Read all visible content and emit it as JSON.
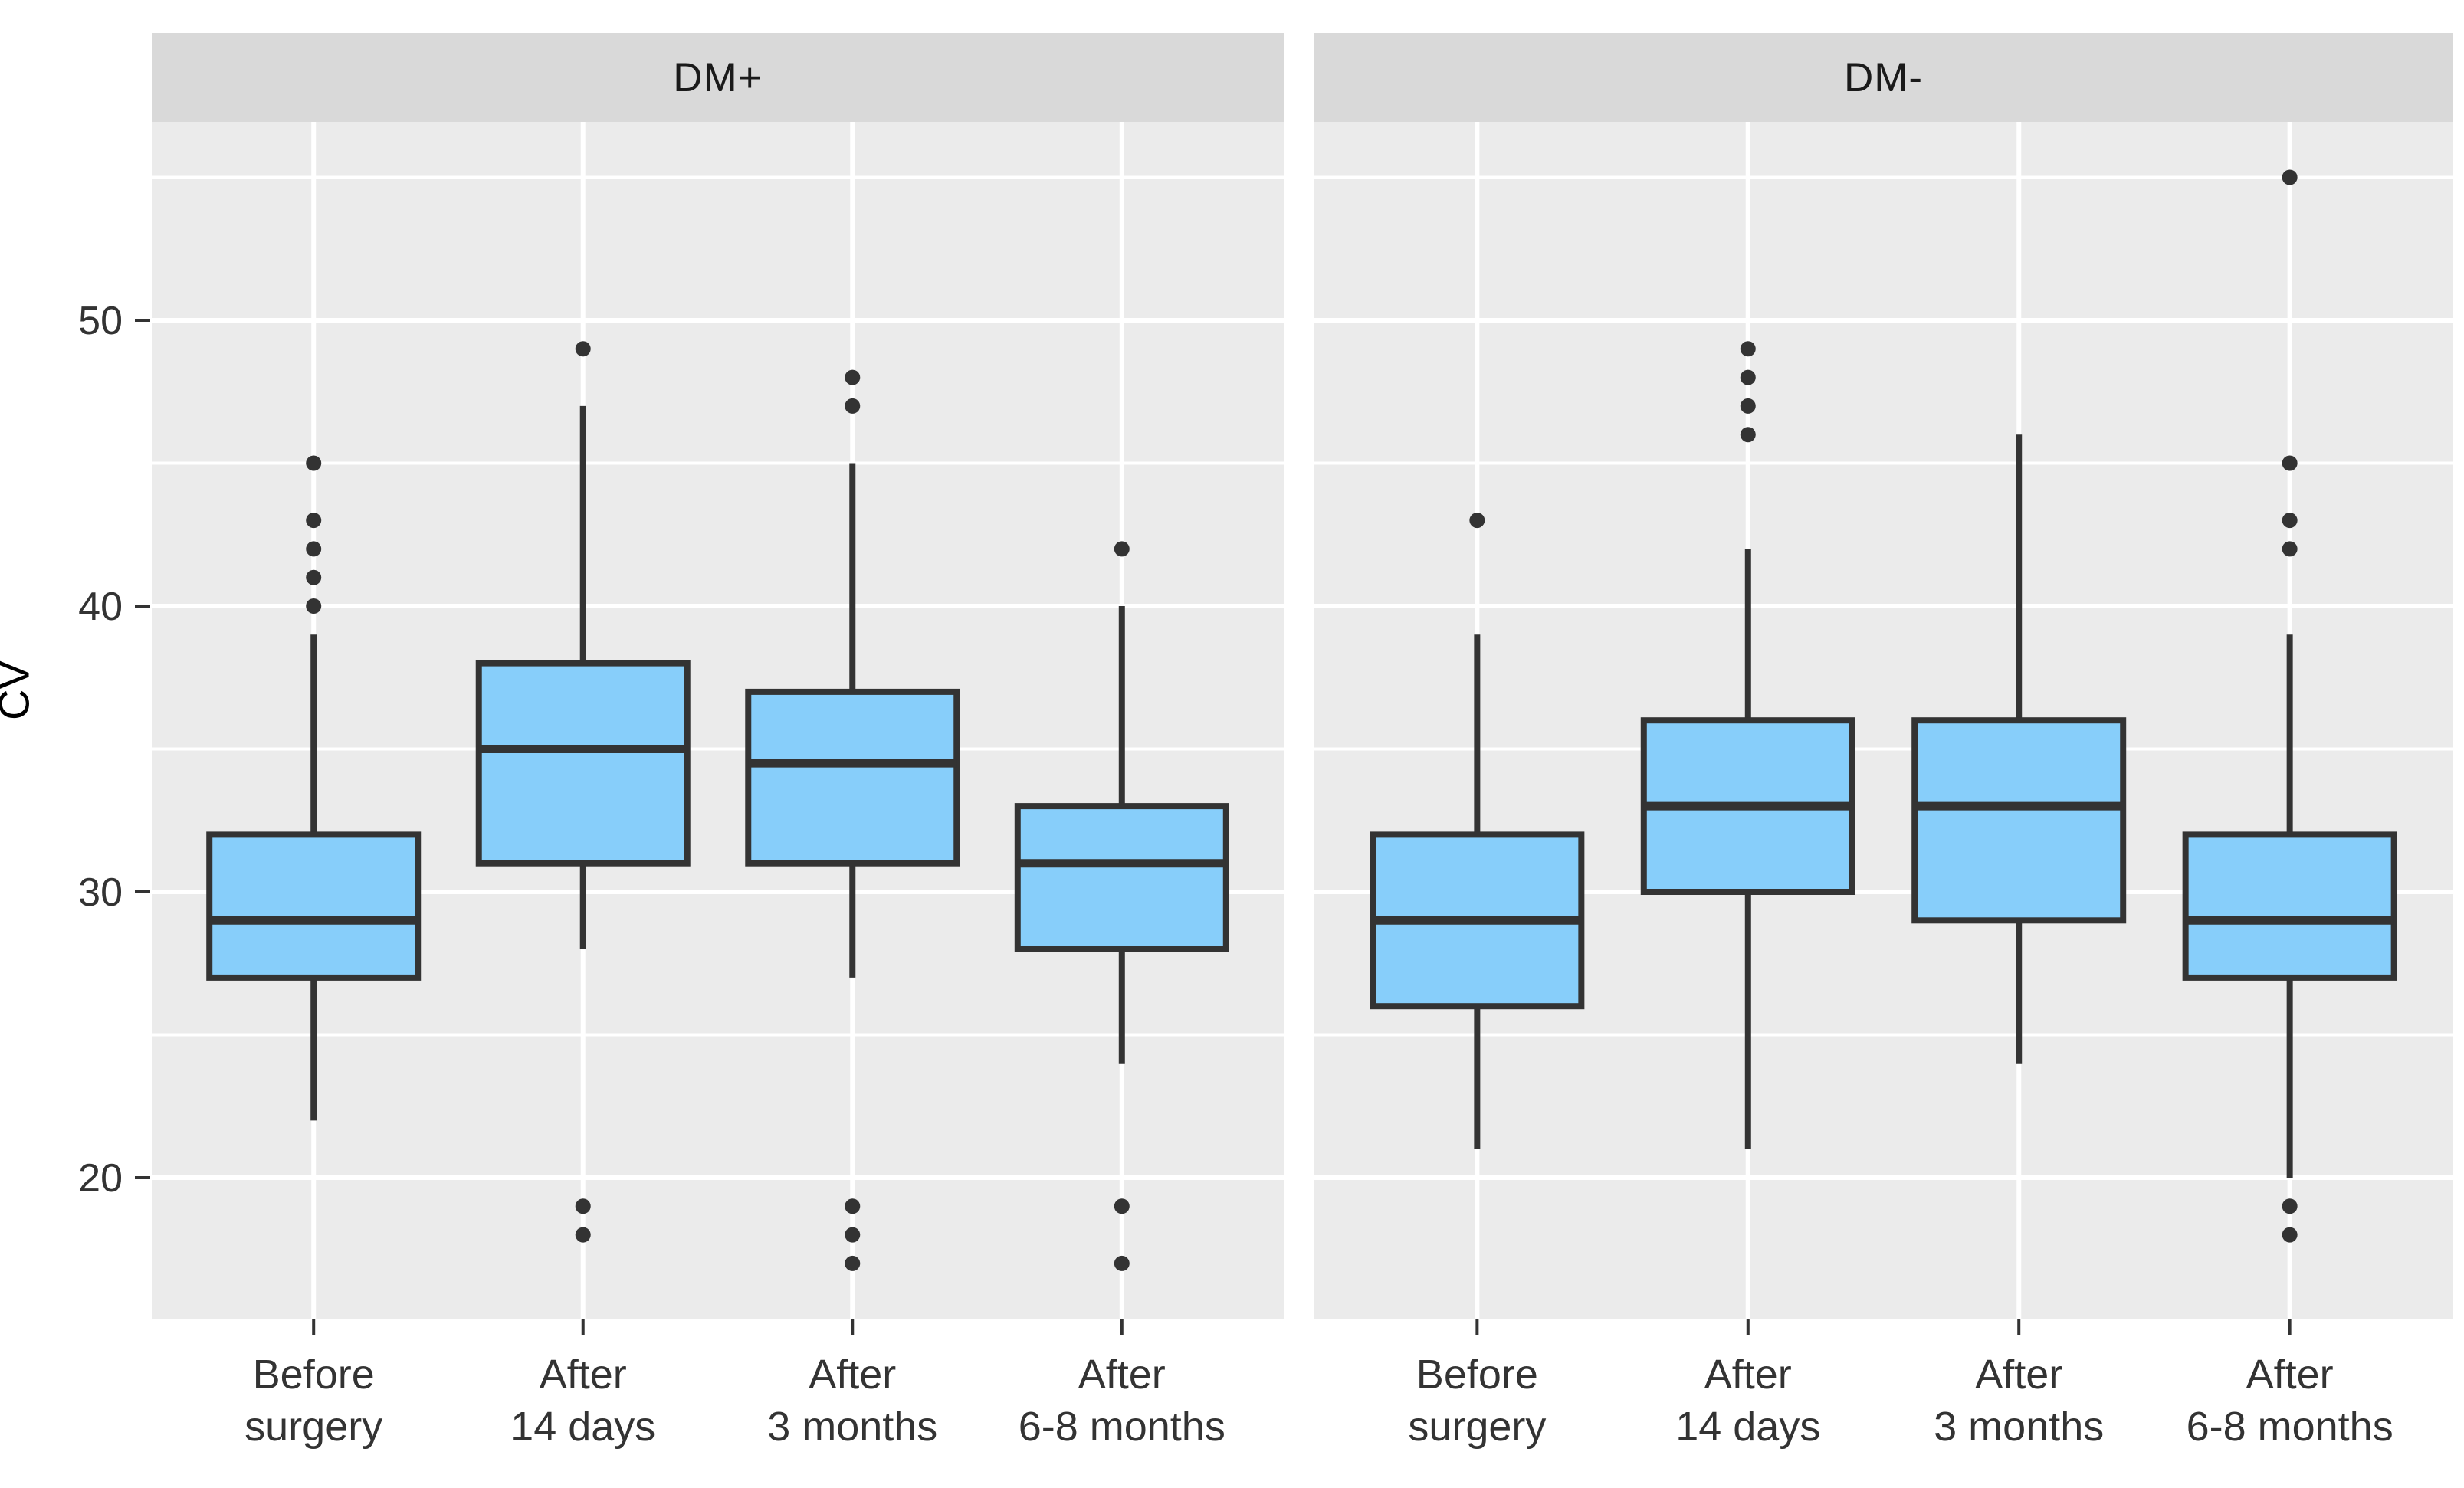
{
  "chart_data": {
    "type": "boxplot",
    "title": "",
    "ylabel": "CV",
    "xlabel": "",
    "y_axis": {
      "ticks": [
        50,
        40,
        30,
        20
      ],
      "minor_gridlines": [
        55,
        45,
        35,
        25
      ],
      "range": [
        15,
        57
      ],
      "grid": "on"
    },
    "x_categories": [
      {
        "label": "Before surgery",
        "line1": "Before",
        "line2": "surgery"
      },
      {
        "label": "After 14 days",
        "line1": "After",
        "line2": "14 days"
      },
      {
        "label": "After 3 months",
        "line1": "After",
        "line2": "3 months"
      },
      {
        "label": "After 6-8 months",
        "line1": "After",
        "line2": "6-8 months"
      }
    ],
    "facets": [
      {
        "label": "DM+",
        "boxes": [
          {
            "category": "Before surgery",
            "whisker_min": 22,
            "q1": 27,
            "median": 29,
            "q3": 32,
            "whisker_max": 39,
            "outliers": [
              40,
              41,
              42,
              43,
              45
            ]
          },
          {
            "category": "After 14 days",
            "whisker_min": 28,
            "q1": 31,
            "median": 35,
            "q3": 38,
            "whisker_max": 47,
            "outliers": [
              49,
              19,
              18
            ]
          },
          {
            "category": "After 3 months",
            "whisker_min": 27,
            "q1": 31,
            "median": 34.5,
            "q3": 37,
            "whisker_max": 45,
            "outliers": [
              48,
              47,
              19,
              18,
              17
            ]
          },
          {
            "category": "After 6-8 months",
            "whisker_min": 24,
            "q1": 28,
            "median": 31,
            "q3": 33,
            "whisker_max": 40,
            "outliers": [
              42,
              19,
              17
            ]
          }
        ]
      },
      {
        "label": "DM-",
        "boxes": [
          {
            "category": "Before surgery",
            "whisker_min": 21,
            "q1": 26,
            "median": 29,
            "q3": 32,
            "whisker_max": 39,
            "outliers": [
              43
            ]
          },
          {
            "category": "After 14 days",
            "whisker_min": 21,
            "q1": 30,
            "median": 33,
            "q3": 36,
            "whisker_max": 42,
            "outliers": [
              49,
              48,
              47,
              46
            ]
          },
          {
            "category": "After 3 months",
            "whisker_min": 24,
            "q1": 29,
            "median": 33,
            "q3": 36,
            "whisker_max": 46,
            "outliers": []
          },
          {
            "category": "After 6-8 months",
            "whisker_min": 20,
            "q1": 27,
            "median": 29,
            "q3": 32,
            "whisker_max": 39,
            "outliers": [
              55,
              45,
              43,
              42,
              19,
              18
            ]
          }
        ]
      }
    ],
    "style": {
      "panel_bg": "#EBEBEB",
      "strip_bg": "#D9D9D9",
      "gridline": "#FFFFFF",
      "box_fill": "#87CEFA",
      "box_stroke": "#333333",
      "outlier_color": "#333333",
      "axis_text": "#333333",
      "strip_text": "#1A1A1A",
      "axis_title_color": "#000000"
    }
  }
}
